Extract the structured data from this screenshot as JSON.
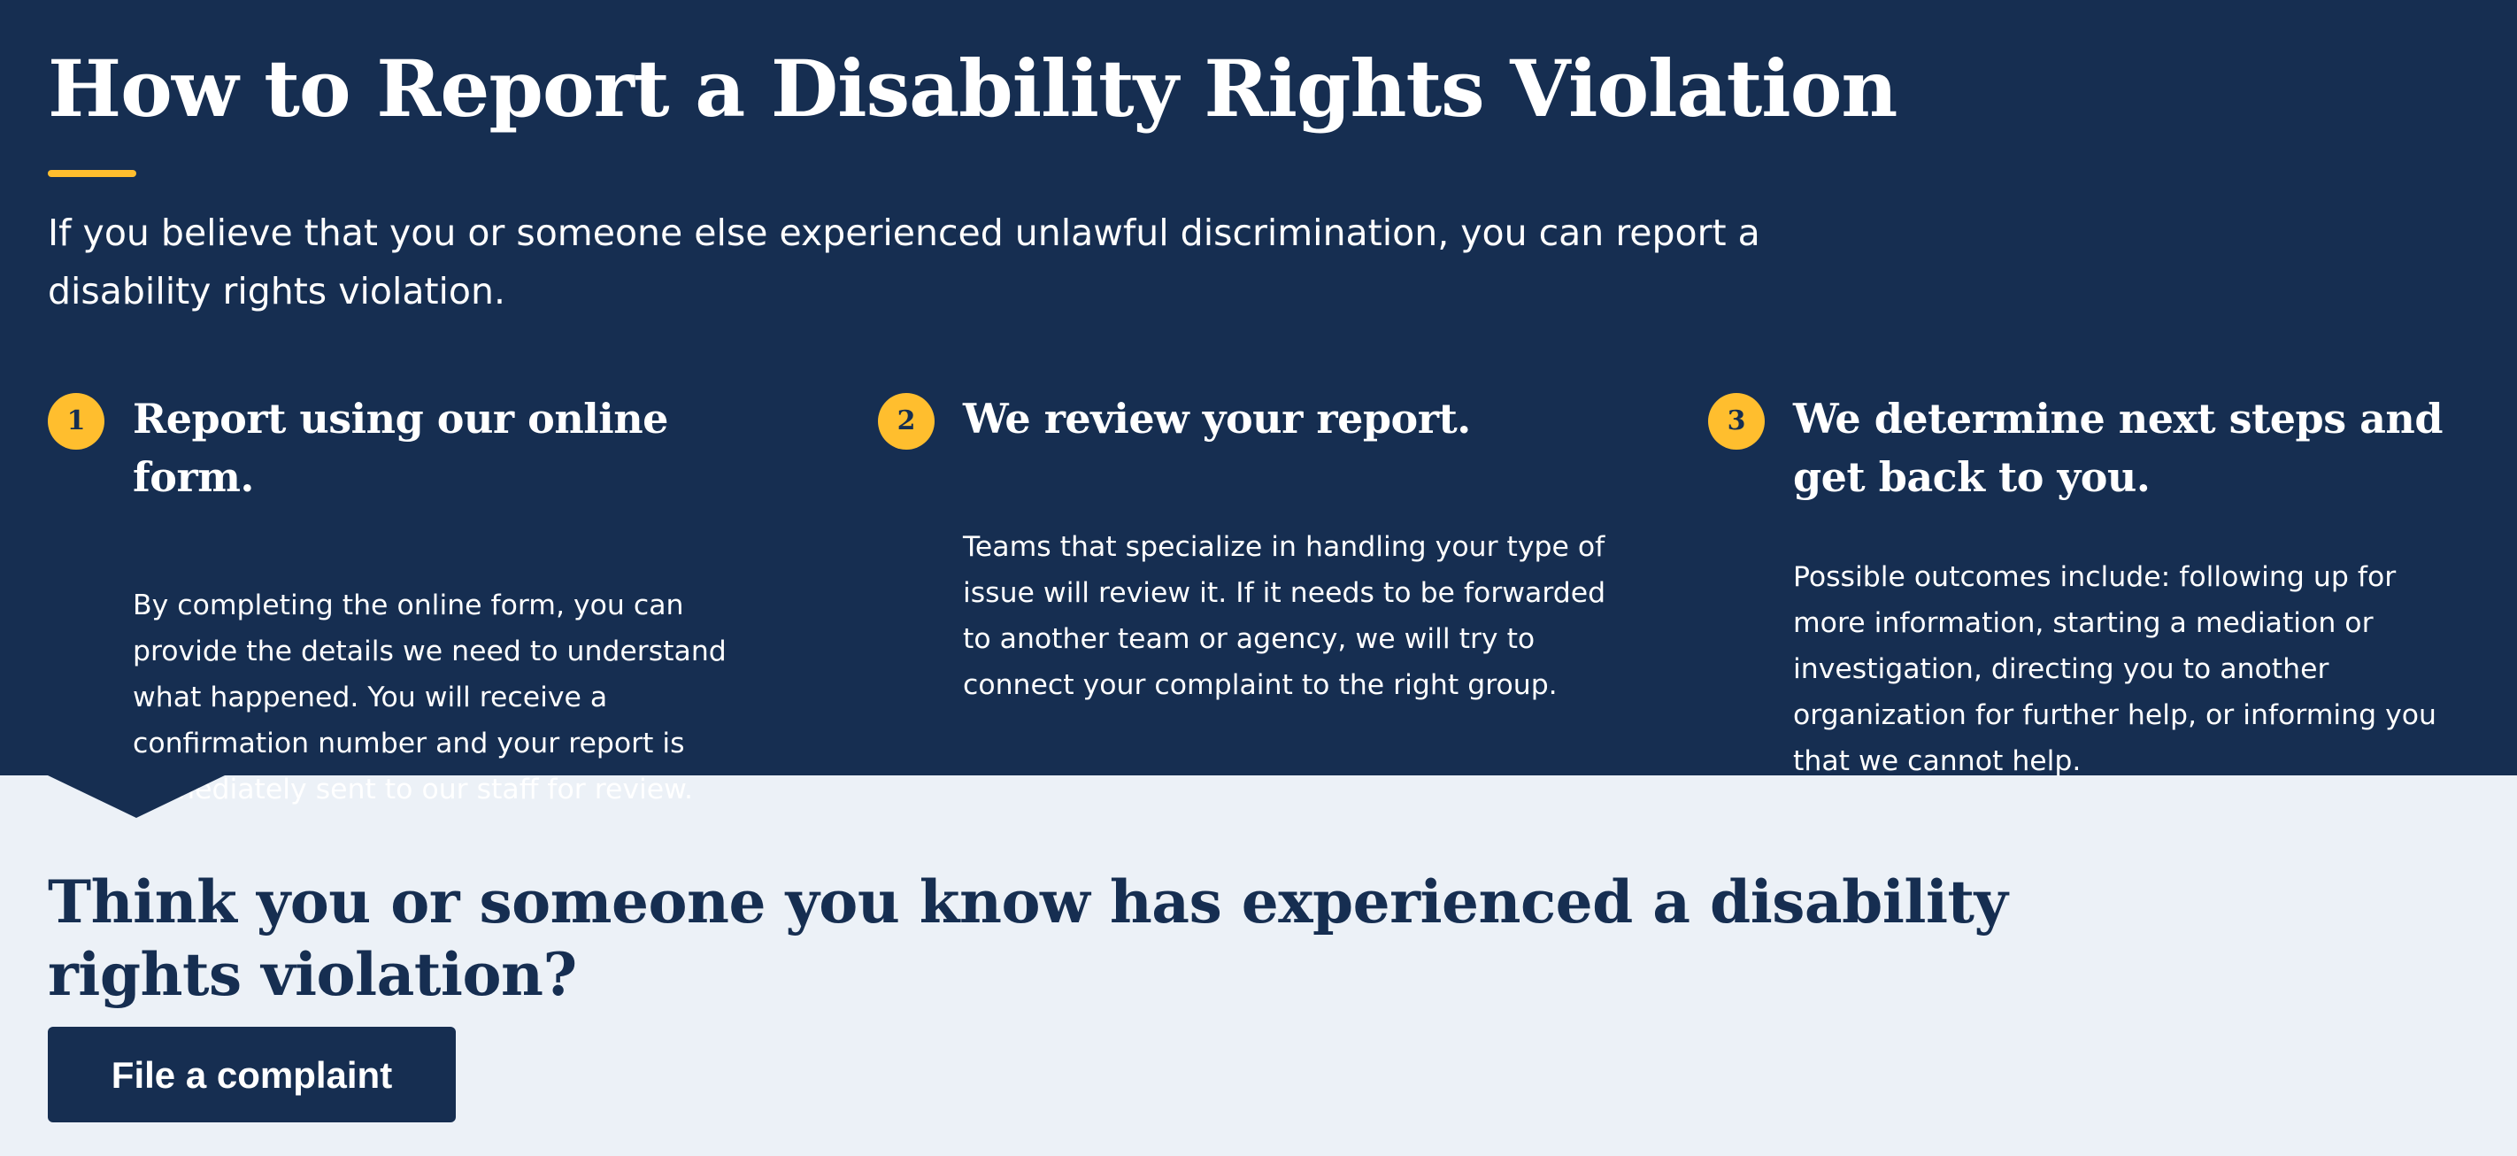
{
  "hero": {
    "title": "How to Report a Disability Rights Violation",
    "intro": "If you believe that you or someone else experienced unlawful discrimination, you can report a disability rights violation."
  },
  "steps": [
    {
      "number": "1",
      "title": "Report using our online form.",
      "text": "By completing the online form, you can provide the details we need to understand what happened. You will receive a confirmation number and your report is immediately sent to our staff for review."
    },
    {
      "number": "2",
      "title": "We review your report.",
      "text": "Teams that specialize in handling your type of issue will review it. If it needs to be forwarded to another team or agency, we will try to connect your complaint to the right group."
    },
    {
      "number": "3",
      "title": "We determine next steps and get back to you.",
      "text": "Possible outcomes include: following up for more information, starting a mediation or investigation, directing you to another organization for further help, or informing you that we cannot help."
    }
  ],
  "cta": {
    "title": "Think you or someone you know has experienced a disability rights violation?",
    "button_label": "File a complaint"
  },
  "colors": {
    "hero_background": "#162e51",
    "accent": "#ffbe2e",
    "page_background": "#ecf1f7"
  }
}
